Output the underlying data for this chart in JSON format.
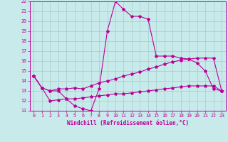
{
  "xlabel": "Windchill (Refroidissement éolien,°C)",
  "background_color": "#c8eaea",
  "grid_color": "#a0cccc",
  "line_color": "#bb0099",
  "xlim": [
    -0.5,
    23.5
  ],
  "ylim": [
    11,
    22
  ],
  "xticks": [
    0,
    1,
    2,
    3,
    4,
    5,
    6,
    7,
    8,
    9,
    10,
    11,
    12,
    13,
    14,
    15,
    16,
    17,
    18,
    19,
    20,
    21,
    22,
    23
  ],
  "yticks": [
    11,
    12,
    13,
    14,
    15,
    16,
    17,
    18,
    19,
    20,
    21,
    22
  ],
  "line1_x": [
    0,
    1,
    2,
    3,
    4,
    5,
    6,
    7,
    8,
    9,
    10,
    11,
    12,
    13,
    14,
    15,
    16,
    17,
    18,
    19,
    20,
    21,
    22,
    23
  ],
  "line1_y": [
    14.5,
    13.3,
    13.0,
    13.0,
    12.2,
    11.5,
    11.2,
    11.0,
    13.2,
    19.0,
    22.0,
    21.2,
    20.5,
    20.5,
    20.2,
    16.5,
    16.5,
    16.5,
    16.3,
    16.2,
    15.8,
    15.0,
    13.2,
    13.0
  ],
  "line2_x": [
    0,
    1,
    2,
    3,
    4,
    5,
    6,
    7,
    8,
    9,
    10,
    11,
    12,
    13,
    14,
    15,
    16,
    17,
    18,
    19,
    20,
    21,
    22,
    23
  ],
  "line2_y": [
    14.5,
    13.3,
    13.0,
    13.2,
    13.2,
    13.3,
    13.2,
    13.5,
    13.8,
    14.0,
    14.2,
    14.5,
    14.7,
    14.9,
    15.2,
    15.4,
    15.7,
    15.9,
    16.1,
    16.2,
    16.3,
    16.3,
    16.3,
    13.0
  ],
  "line3_x": [
    0,
    1,
    2,
    3,
    4,
    5,
    6,
    7,
    8,
    9,
    10,
    11,
    12,
    13,
    14,
    15,
    16,
    17,
    18,
    19,
    20,
    21,
    22,
    23
  ],
  "line3_y": [
    14.5,
    13.3,
    12.0,
    12.1,
    12.2,
    12.2,
    12.3,
    12.4,
    12.5,
    12.6,
    12.7,
    12.7,
    12.8,
    12.9,
    13.0,
    13.1,
    13.2,
    13.3,
    13.4,
    13.5,
    13.5,
    13.5,
    13.5,
    13.0
  ],
  "xlabel_fontsize": 5.5,
  "tick_fontsize": 4.8
}
